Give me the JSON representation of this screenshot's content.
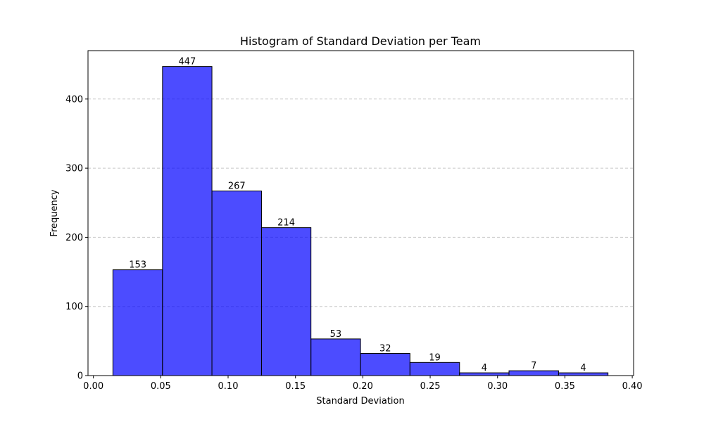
{
  "chart_data": {
    "type": "bar",
    "title": "Histogram of Standard Deviation per Team",
    "xlabel": "Standard Deviation",
    "ylabel": "Frequency",
    "xlim": [
      -0.004,
      0.401
    ],
    "ylim": [
      0,
      470
    ],
    "xticks": [
      0.0,
      0.05,
      0.1,
      0.15,
      0.2,
      0.25,
      0.3,
      0.35,
      0.4
    ],
    "xtick_labels": [
      "0.00",
      "0.05",
      "0.10",
      "0.15",
      "0.20",
      "0.25",
      "0.30",
      "0.35",
      "0.40"
    ],
    "yticks": [
      0,
      100,
      200,
      300,
      400
    ],
    "ytick_labels": [
      "0",
      "100",
      "200",
      "300",
      "400"
    ],
    "grid": "y-dashed",
    "bar_color": "#0000ff",
    "bar_alpha": 0.7,
    "edge_color": "#000000",
    "bin_edges": [
      0.0145,
      0.0513,
      0.088,
      0.1248,
      0.1615,
      0.1983,
      0.235,
      0.2718,
      0.3085,
      0.3453,
      0.382
    ],
    "values": [
      153,
      447,
      267,
      214,
      53,
      32,
      19,
      4,
      7,
      4
    ]
  }
}
